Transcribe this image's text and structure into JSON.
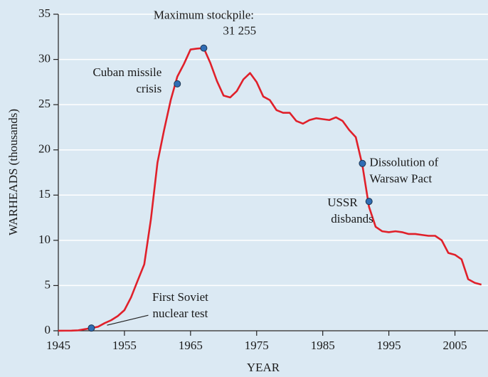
{
  "chart_data": {
    "type": "line",
    "xlabel": "YEAR",
    "ylabel": "WARHEADS (thousands)",
    "x": [
      1945,
      1946,
      1947,
      1948,
      1949,
      1950,
      1951,
      1952,
      1953,
      1954,
      1955,
      1956,
      1957,
      1958,
      1959,
      1960,
      1961,
      1962,
      1963,
      1964,
      1965,
      1966,
      1967,
      1968,
      1969,
      1970,
      1971,
      1972,
      1973,
      1974,
      1975,
      1976,
      1977,
      1978,
      1979,
      1980,
      1981,
      1982,
      1983,
      1984,
      1985,
      1986,
      1987,
      1988,
      1989,
      1990,
      1991,
      1992,
      1993,
      1994,
      1995,
      1996,
      1997,
      1998,
      1999,
      2000,
      2001,
      2002,
      2003,
      2004,
      2005,
      2006,
      2007,
      2008,
      2009
    ],
    "values": [
      0.002,
      0.009,
      0.013,
      0.05,
      0.17,
      0.3,
      0.44,
      0.84,
      1.17,
      1.63,
      2.28,
      3.69,
      5.54,
      7.35,
      12.3,
      18.6,
      22.2,
      25.5,
      28.1,
      29.5,
      31.1,
      31.2,
      31.255,
      29.6,
      27.6,
      26.0,
      25.8,
      26.5,
      27.8,
      28.5,
      27.5,
      25.9,
      25.5,
      24.4,
      24.1,
      24.1,
      23.2,
      22.9,
      23.3,
      23.5,
      23.4,
      23.3,
      23.6,
      23.2,
      22.2,
      21.4,
      18.3,
      13.7,
      11.5,
      11.0,
      10.9,
      11.0,
      10.9,
      10.7,
      10.7,
      10.6,
      10.5,
      10.5,
      10.0,
      8.6,
      8.4,
      7.9,
      5.7,
      5.3,
      5.1
    ],
    "color": "#e0202a",
    "marker_color": "#2f6db5",
    "xlim": [
      1945,
      2010
    ],
    "ylim": [
      0,
      35
    ],
    "xticks": [
      1945,
      1955,
      1965,
      1975,
      1985,
      1995,
      2005
    ],
    "yticks": [
      0,
      5,
      10,
      15,
      20,
      25,
      30,
      35
    ],
    "grid": true,
    "annotations": [
      {
        "lines": [
          "First Soviet",
          "nuclear test"
        ],
        "x": 1950,
        "y": 0.3
      },
      {
        "lines": [
          "Cuban missile",
          "crisis"
        ],
        "x": 1963,
        "y": 27.3
      },
      {
        "lines": [
          "Maximum stockpile:",
          "31 255"
        ],
        "x": 1967,
        "y": 31.255
      },
      {
        "lines": [
          "Dissolution of",
          "Warsaw Pact"
        ],
        "x": 1991,
        "y": 18.5
      },
      {
        "lines": [
          "USSR",
          "disbands"
        ],
        "x": 1992,
        "y": 14.3
      }
    ]
  }
}
